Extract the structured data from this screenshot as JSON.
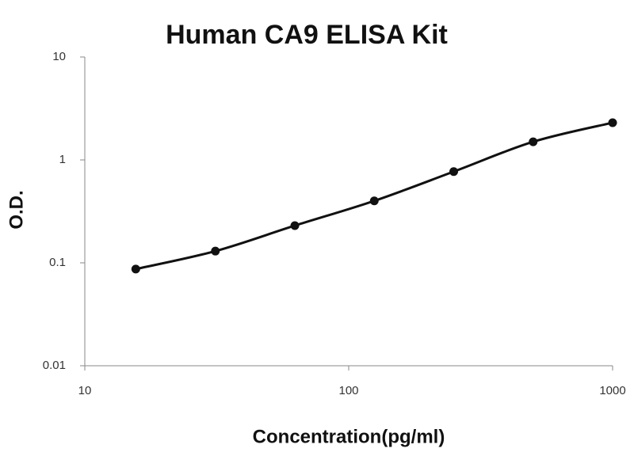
{
  "chart_data": {
    "type": "scatter",
    "title": "Human CA9 ELISA Kit",
    "x_label": "Concentration(pg/ml)",
    "y_label": "O.D.",
    "x_log": true,
    "y_log": true,
    "xlim": [
      10,
      1000
    ],
    "ylim": [
      0.01,
      10
    ],
    "xticks": [
      10,
      100,
      1000
    ],
    "yticks": [
      0.01,
      0.1,
      1,
      10
    ],
    "smooth_line": true,
    "series": [
      {
        "color": "#111111",
        "x": [
          15.6,
          31.25,
          62.5,
          125,
          250,
          500,
          1000
        ],
        "values": [
          0.087,
          0.13,
          0.23,
          0.4,
          0.77,
          1.5,
          2.3
        ]
      }
    ]
  }
}
